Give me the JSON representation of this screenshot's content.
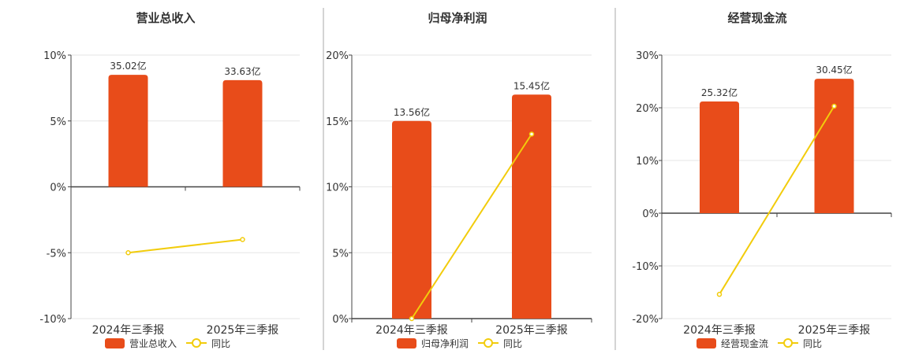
{
  "chart_data": [
    {
      "type": "bar",
      "title": "营业总收入",
      "categories": [
        "2024年三季报",
        "2025年三季报"
      ],
      "bar_labels": [
        "35.02亿",
        "33.63亿"
      ],
      "bar_values_percent": [
        8.5,
        8.1
      ],
      "line_values_percent": [
        -5.0,
        -4.0
      ],
      "ylim": [
        -10,
        10
      ],
      "yticks": [
        -10,
        -5,
        0,
        5,
        10
      ],
      "ytick_labels": [
        "-10%",
        "-5%",
        "0%",
        "5%",
        "10%"
      ],
      "legend": [
        "营业总收入",
        "同比"
      ],
      "legend_position": "bottom"
    },
    {
      "type": "bar",
      "title": "归母净利润",
      "categories": [
        "2024年三季报",
        "2025年三季报"
      ],
      "bar_labels": [
        "13.56亿",
        "15.45亿"
      ],
      "bar_values_percent": [
        15.0,
        17.0
      ],
      "line_values_percent": [
        0.0,
        14.0
      ],
      "ylim": [
        0,
        20
      ],
      "yticks": [
        0,
        5,
        10,
        15,
        20
      ],
      "ytick_labels": [
        "0%",
        "5%",
        "10%",
        "15%",
        "20%"
      ],
      "legend": [
        "归母净利润",
        "同比"
      ],
      "legend_position": "bottom"
    },
    {
      "type": "bar",
      "title": "经营现金流",
      "categories": [
        "2024年三季报",
        "2025年三季报"
      ],
      "bar_labels": [
        "25.32亿",
        "30.45亿"
      ],
      "bar_values_percent": [
        21.2,
        25.5
      ],
      "line_values_percent": [
        -15.4,
        20.3
      ],
      "ylim": [
        -20,
        30
      ],
      "yticks": [
        -20,
        -10,
        0,
        10,
        20,
        30
      ],
      "ytick_labels": [
        "-20%",
        "-10%",
        "0%",
        "10%",
        "20%",
        "30%"
      ],
      "legend": [
        "经营现金流",
        "同比"
      ],
      "legend_position": "bottom"
    }
  ],
  "colors": {
    "bar": "#e84c1a",
    "line": "#f2cc0c",
    "grid": "#e6e6e6",
    "axis": "#444444",
    "text": "#333333",
    "divider": "#aaaaaa"
  }
}
